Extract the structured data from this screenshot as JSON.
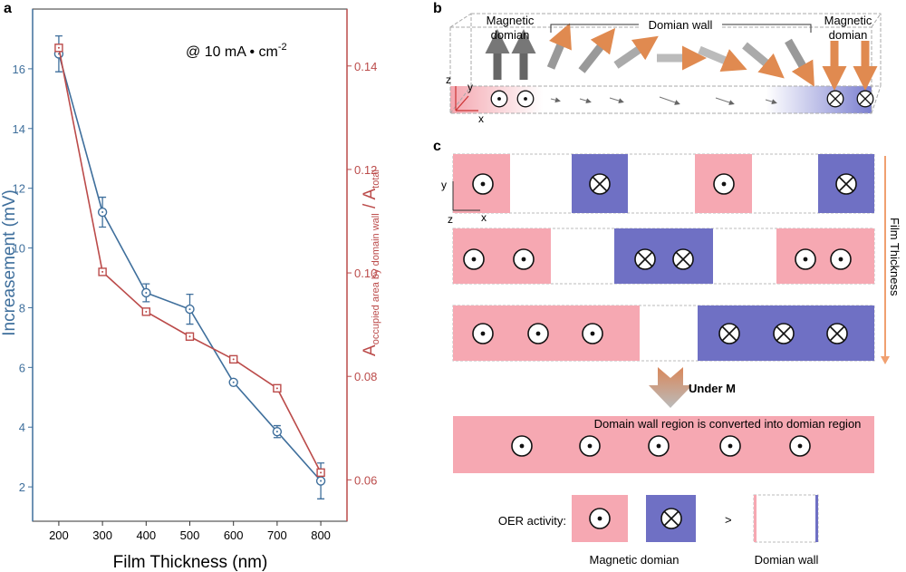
{
  "chart_data": {
    "type": "line",
    "panel_label": "a",
    "annotation": {
      "text": "@ 10 mA • cm",
      "sup": "-2"
    },
    "xlabel": "Film Thickness (nm)",
    "ylabel": "Increasement (mV)",
    "y2label": {
      "main": "A",
      "sub": "occupied area by domain wall",
      "main2": " / A",
      "sub2": "total"
    },
    "x": [
      200,
      300,
      400,
      500,
      600,
      700,
      800
    ],
    "xlim": [
      140,
      860
    ],
    "xticks": [
      200,
      300,
      400,
      500,
      600,
      700,
      800
    ],
    "ylim": [
      0.85,
      18
    ],
    "yticks": [
      2,
      4,
      6,
      8,
      10,
      12,
      14,
      16
    ],
    "y2lim": [
      0.052,
      0.151
    ],
    "y2ticks": [
      0.06,
      0.08,
      {
        "value": 0.1,
        "label": "0.10"
      },
      0.12,
      0.14
    ],
    "series": [
      {
        "color": "#3f6f9c",
        "values": [
          16.5,
          11.2,
          8.5,
          7.95,
          5.5,
          3.85,
          2.2
        ],
        "errors": [
          0.6,
          0.5,
          0.3,
          0.5,
          0,
          0.2,
          0.6
        ]
      },
      {
        "color": "#bb4b4a",
        "axis": "y2",
        "values": [
          0.1435,
          0.1002,
          0.0925,
          0.0877,
          0.0833,
          0.0777,
          0.0614
        ]
      }
    ]
  },
  "panel_b": {
    "label": "b",
    "left_domain": [
      "Magnetic",
      "domian"
    ],
    "wall": "Domian wall",
    "right_domain": [
      "Magnetic",
      "domian"
    ],
    "axes": [
      "z",
      "y",
      "x"
    ]
  },
  "panel_c": {
    "label": "c",
    "axes": [
      "y",
      "z",
      "x"
    ],
    "film_thickness": "Film Thickness",
    "under_m": "Under M",
    "converted": "Domain wall region is converted into domian region",
    "oer": "OER activity:",
    "greater": ">",
    "legend_domain": "Magnetic domian",
    "legend_wall": "Domian wall"
  }
}
